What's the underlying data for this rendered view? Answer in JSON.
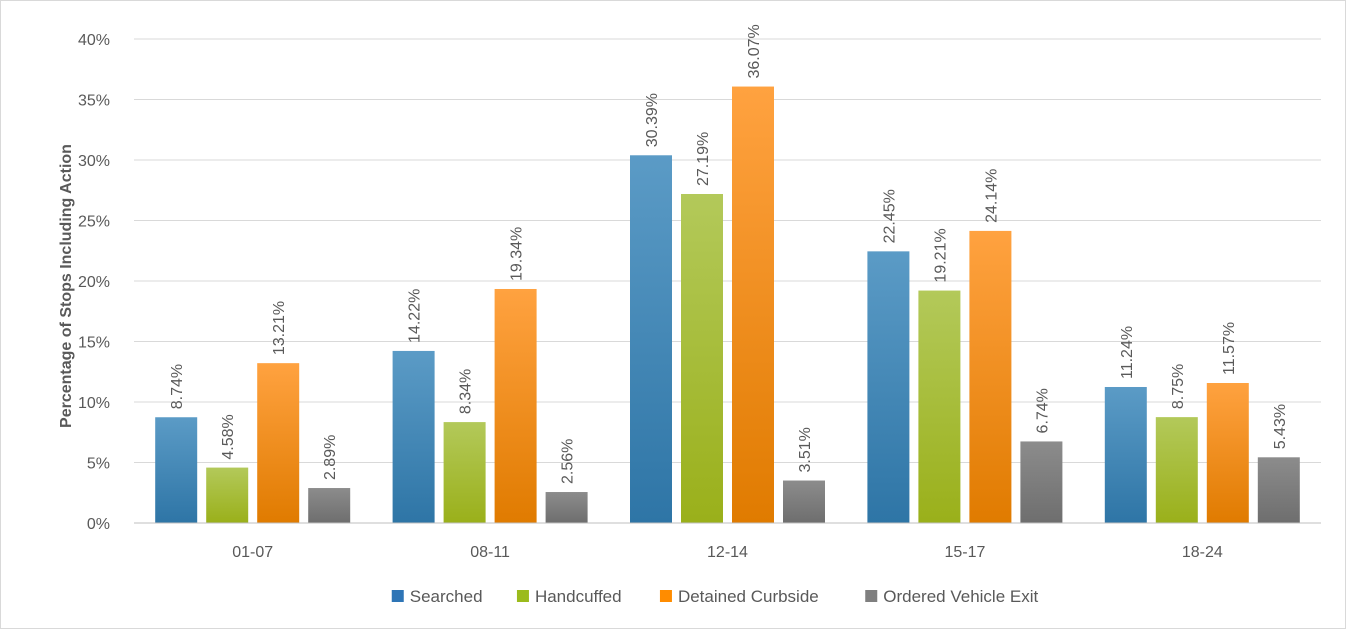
{
  "chart_data": {
    "type": "bar",
    "title": "",
    "xlabel": "",
    "ylabel": "Percentage of Stops Including Action",
    "ylim": [
      0,
      40
    ],
    "yticks": [
      0,
      5,
      10,
      15,
      20,
      25,
      30,
      35,
      40
    ],
    "ytick_suffix": "%",
    "grid": "horizontal",
    "legend_position": "bottom",
    "categories": [
      "01-07",
      "08-11",
      "12-14",
      "15-17",
      "18-24"
    ],
    "series": [
      {
        "name": "Searched",
        "color_top": "#5b9bc6",
        "color_bottom": "#2e75a6",
        "color": "#2e75b6",
        "values": [
          8.74,
          14.22,
          30.39,
          22.45,
          11.24
        ],
        "labels": [
          "8.74%",
          "14.22%",
          "30.39%",
          "22.45%",
          "11.24%"
        ]
      },
      {
        "name": "Handcuffed",
        "color_top": "#b3c95a",
        "color_bottom": "#9ab01a",
        "color": "#9bbb1c",
        "values": [
          4.58,
          8.34,
          27.19,
          19.21,
          8.75
        ],
        "labels": [
          "4.58%",
          "8.34%",
          "27.19%",
          "19.21%",
          "8.75%"
        ]
      },
      {
        "name": "Detained Curbside",
        "color_top": "#ffa240",
        "color_bottom": "#e07b00",
        "color": "#ff8c00",
        "values": [
          13.21,
          19.34,
          36.07,
          24.14,
          11.57
        ],
        "labels": [
          "13.21%",
          "19.34%",
          "36.07%",
          "24.14%",
          "11.57%"
        ]
      },
      {
        "name": "Ordered Vehicle Exit",
        "color_top": "#8c8c8c",
        "color_bottom": "#6e6e6e",
        "color": "#7f7f7f",
        "values": [
          2.89,
          2.56,
          3.51,
          6.74,
          5.43
        ],
        "labels": [
          "2.89%",
          "2.56%",
          "3.51%",
          "6.74%",
          "5.43%"
        ]
      }
    ]
  }
}
